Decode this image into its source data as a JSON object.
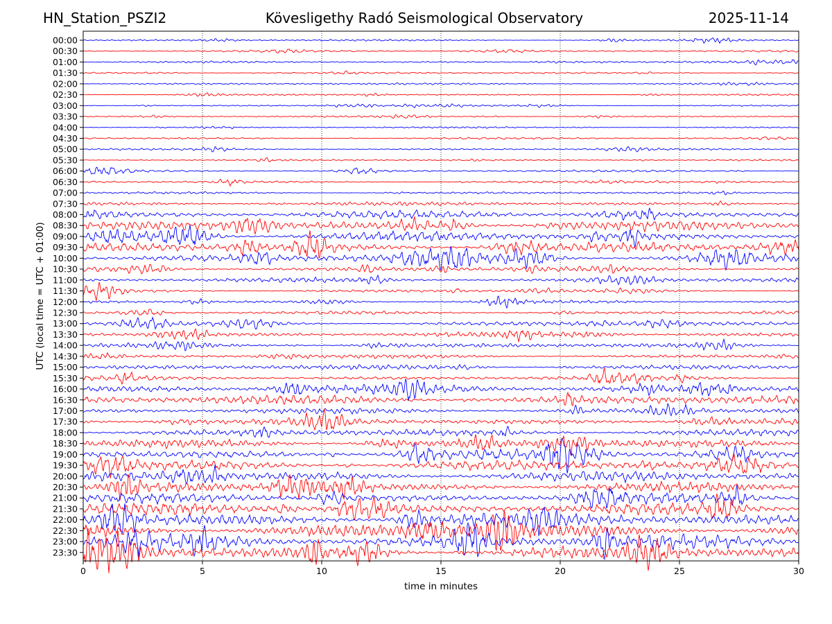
{
  "header": {
    "station": "HN_Station_PSZI2",
    "title": "Kövesligethy Radó Seismological Observatory",
    "date": "2025-11-14"
  },
  "colors": {
    "even_trace": "#0000ff",
    "odd_trace": "#ff0000",
    "grid": "#000000"
  },
  "chart_data": {
    "type": "line",
    "xlabel": "time in minutes",
    "ylabel": "UTC (local time = UTC + 01:00)",
    "xlim": [
      0,
      30
    ],
    "x_ticks": [
      0,
      5,
      10,
      15,
      20,
      25,
      30
    ],
    "grid": "vertical dotted at x ticks",
    "rows": [
      "00:00",
      "00:30",
      "01:00",
      "01:30",
      "02:00",
      "02:30",
      "03:00",
      "03:30",
      "04:00",
      "04:30",
      "05:00",
      "05:30",
      "06:00",
      "06:30",
      "07:00",
      "07:30",
      "08:00",
      "08:30",
      "09:00",
      "09:30",
      "10:00",
      "10:30",
      "11:00",
      "11:30",
      "12:00",
      "12:30",
      "13:00",
      "13:30",
      "14:00",
      "14:30",
      "15:00",
      "15:30",
      "16:00",
      "16:30",
      "17:00",
      "17:30",
      "18:00",
      "18:30",
      "19:00",
      "19:30",
      "20:00",
      "20:30",
      "21:00",
      "21:30",
      "22:00",
      "22:30",
      "23:00",
      "23:30"
    ],
    "relative_amplitude": [
      0.3,
      0.3,
      0.3,
      0.3,
      0.3,
      0.25,
      0.25,
      0.25,
      0.25,
      0.3,
      0.3,
      0.3,
      0.35,
      0.35,
      0.35,
      0.6,
      1.2,
      1.5,
      1.5,
      1.5,
      1.5,
      0.8,
      0.7,
      0.5,
      0.45,
      0.5,
      0.7,
      0.8,
      0.7,
      0.6,
      0.8,
      0.7,
      1.4,
      1.5,
      0.9,
      1.0,
      1.1,
      1.3,
      1.5,
      1.6,
      1.6,
      1.5,
      1.5,
      1.8,
      2.2,
      2.3,
      2.2,
      2.0
    ]
  }
}
